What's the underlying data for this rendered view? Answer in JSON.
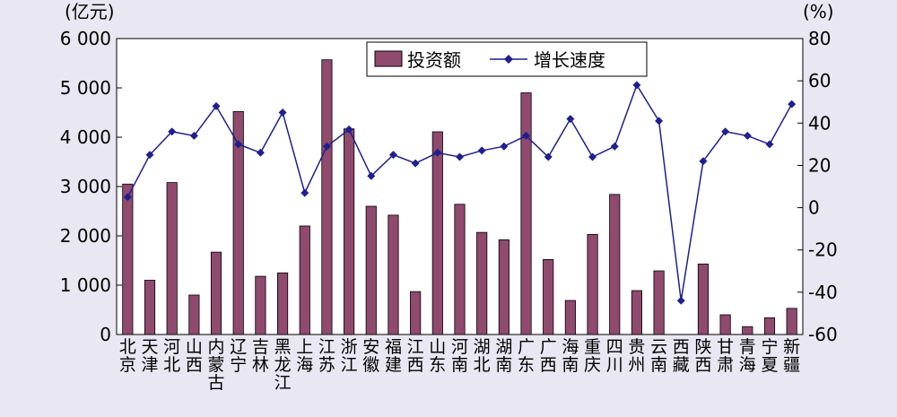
{
  "chart_data": {
    "type": "bar+line",
    "left_unit": "(亿元)",
    "right_unit": "(%)",
    "categories": [
      "北京",
      "天津",
      "河北",
      "山西",
      "内蒙古",
      "辽宁",
      "吉林",
      "黑龙江",
      "上海",
      "江苏",
      "浙江",
      "安徽",
      "福建",
      "江西",
      "山东",
      "河南",
      "湖北",
      "湖南",
      "广东",
      "广西",
      "海南",
      "重庆",
      "四川",
      "贵州",
      "云南",
      "西藏",
      "陕西",
      "甘肃",
      "青海",
      "宁夏",
      "新疆"
    ],
    "series": [
      {
        "name": "投资额",
        "type": "bar",
        "axis": "left",
        "color": "#8f4a6e",
        "values": [
          3050,
          1100,
          3080,
          800,
          1670,
          4520,
          1180,
          1250,
          2200,
          5570,
          4170,
          2600,
          2420,
          870,
          4110,
          2640,
          2070,
          1920,
          4900,
          1520,
          690,
          2030,
          2840,
          890,
          1290,
          0,
          1430,
          400,
          160,
          340,
          530
        ]
      },
      {
        "name": "增长速度",
        "type": "line",
        "axis": "right",
        "color": "#1f1f8f",
        "values": [
          5,
          25,
          36,
          34,
          48,
          30,
          26,
          45,
          7,
          29,
          37,
          15,
          25,
          21,
          26,
          24,
          27,
          29,
          34,
          24,
          42,
          24,
          29,
          58,
          41,
          -44,
          22,
          36,
          34,
          30,
          49
        ]
      }
    ],
    "left_axis": {
      "min": 0,
      "max": 6000,
      "ticks": [
        0,
        1000,
        2000,
        3000,
        4000,
        5000,
        6000
      ],
      "tick_labels": [
        "0",
        "1 000",
        "2 000",
        "3 000",
        "4 000",
        "5 000",
        "6 000"
      ]
    },
    "right_axis": {
      "min": -60,
      "max": 80,
      "ticks": [
        -60,
        -40,
        -20,
        0,
        20,
        40,
        60,
        80
      ],
      "tick_labels": [
        "-60",
        "-40",
        "-20",
        "0",
        "20",
        "40",
        "60",
        "80"
      ]
    },
    "legend": {
      "placement": "top-center",
      "items": [
        "投资额",
        "增长速度"
      ]
    },
    "grid": false
  }
}
